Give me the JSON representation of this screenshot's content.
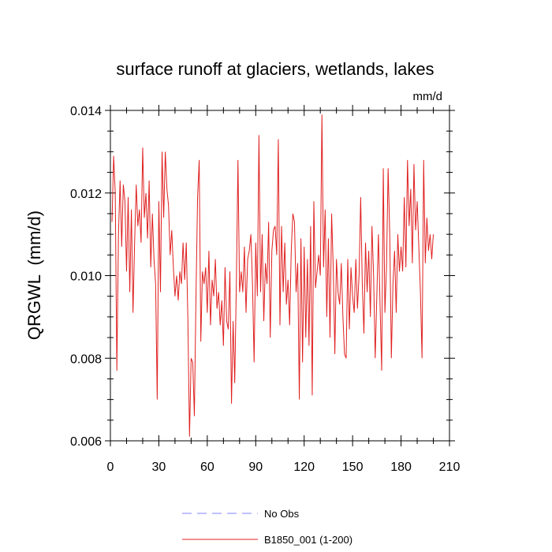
{
  "chart_data": {
    "type": "line",
    "title": "surface runoff at glaciers, wetlands, lakes",
    "units": "mm/d",
    "y_label": "QRGWL  (mm/d)",
    "xlim": [
      0,
      210
    ],
    "xticks": [
      0,
      30,
      60,
      90,
      120,
      150,
      180,
      210
    ],
    "ylim": [
      0.006,
      0.014
    ],
    "yticks": [
      0.006,
      0.008,
      {
        "value": 0.01,
        "label": "0.010"
      },
      0.012,
      0.014
    ],
    "x": [
      1,
      2,
      3,
      4,
      5,
      6,
      7,
      8,
      9,
      10,
      11,
      12,
      13,
      14,
      15,
      16,
      17,
      18,
      19,
      20,
      21,
      22,
      23,
      24,
      25,
      26,
      27,
      28,
      29,
      30,
      31,
      32,
      33,
      34,
      35,
      36,
      37,
      38,
      39,
      40,
      41,
      42,
      43,
      44,
      45,
      46,
      47,
      48,
      49,
      50,
      51,
      52,
      53,
      54,
      55,
      56,
      57,
      58,
      59,
      60,
      61,
      62,
      63,
      64,
      65,
      66,
      67,
      68,
      69,
      70,
      71,
      72,
      73,
      74,
      75,
      76,
      77,
      78,
      79,
      80,
      81,
      82,
      83,
      84,
      85,
      86,
      87,
      88,
      89,
      90,
      91,
      92,
      93,
      94,
      95,
      96,
      97,
      98,
      99,
      100,
      101,
      102,
      103,
      104,
      105,
      106,
      107,
      108,
      109,
      110,
      111,
      112,
      113,
      114,
      115,
      116,
      117,
      118,
      119,
      120,
      121,
      122,
      123,
      124,
      125,
      126,
      127,
      128,
      129,
      130,
      131,
      132,
      133,
      134,
      135,
      136,
      137,
      138,
      139,
      140,
      141,
      142,
      143,
      144,
      145,
      146,
      147,
      148,
      149,
      150,
      151,
      152,
      153,
      154,
      155,
      156,
      157,
      158,
      159,
      160,
      161,
      162,
      163,
      164,
      165,
      166,
      167,
      168,
      169,
      170,
      171,
      172,
      173,
      174,
      175,
      176,
      177,
      178,
      179,
      180,
      181,
      182,
      183,
      184,
      185,
      186,
      187,
      188,
      189,
      190,
      191,
      192,
      193,
      194,
      195,
      196,
      197,
      198,
      199,
      200
    ],
    "series": [
      {
        "name": "No Obs",
        "color": "#8080ff",
        "line_style": "dashed"
      },
      {
        "name": "B1850_001 (1-200)",
        "color": "#e02020",
        "line_style": "solid",
        "values": [
          0.0113,
          0.0129,
          0.012,
          0.0077,
          0.011,
          0.0123,
          0.0107,
          0.0122,
          0.0118,
          0.0101,
          0.0119,
          0.0096,
          0.0116,
          0.0091,
          0.0108,
          0.0122,
          0.0112,
          0.0116,
          0.0108,
          0.0131,
          0.0114,
          0.012,
          0.0109,
          0.0123,
          0.0102,
          0.0115,
          0.0104,
          0.0098,
          0.007,
          0.0118,
          0.0096,
          0.013,
          0.0114,
          0.013,
          0.0121,
          0.0117,
          0.0105,
          0.0111,
          0.0102,
          0.0095,
          0.01,
          0.0094,
          0.0101,
          0.0098,
          0.0108,
          0.0099,
          0.0108,
          0.0089,
          0.0061,
          0.008,
          0.0079,
          0.0066,
          0.0095,
          0.0119,
          0.0128,
          0.0084,
          0.0101,
          0.0098,
          0.0102,
          0.0091,
          0.0106,
          0.0088,
          0.0099,
          0.0095,
          0.0104,
          0.0092,
          0.0096,
          0.0088,
          0.0094,
          0.0083,
          0.0102,
          0.0089,
          0.0087,
          0.0101,
          0.0069,
          0.0089,
          0.0074,
          0.0098,
          0.0128,
          0.0096,
          0.0101,
          0.0096,
          0.0107,
          0.0091,
          0.0104,
          0.0106,
          0.011,
          0.0098,
          0.0079,
          0.0108,
          0.0095,
          0.0134,
          0.0096,
          0.011,
          0.0089,
          0.0103,
          0.0098,
          0.0113,
          0.0085,
          0.0106,
          0.0111,
          0.0112,
          0.0105,
          0.0133,
          0.0088,
          0.0112,
          0.0096,
          0.0108,
          0.0093,
          0.0099,
          0.0088,
          0.0106,
          0.0115,
          0.0113,
          0.0096,
          0.0103,
          0.007,
          0.0109,
          0.0079,
          0.0107,
          0.0085,
          0.0104,
          0.0083,
          0.0112,
          0.0071,
          0.0118,
          0.0097,
          0.0101,
          0.0105,
          0.01,
          0.0139,
          0.0102,
          0.0116,
          0.009,
          0.0109,
          0.0085,
          0.0115,
          0.0102,
          0.0081,
          0.0104,
          0.0096,
          0.0093,
          0.0103,
          0.009,
          0.0081,
          0.008,
          0.0104,
          0.0087,
          0.0102,
          0.0095,
          0.0091,
          0.0104,
          0.0092,
          0.01,
          0.0119,
          0.0098,
          0.0086,
          0.0108,
          0.0096,
          0.0106,
          0.009,
          0.0112,
          0.01,
          0.008,
          0.0095,
          0.011,
          0.0093,
          0.0077,
          0.0126,
          0.0091,
          0.0102,
          0.0126,
          0.011,
          0.008,
          0.0098,
          0.0106,
          0.0091,
          0.011,
          0.0101,
          0.0107,
          0.0101,
          0.0119,
          0.0102,
          0.0128,
          0.0112,
          0.0121,
          0.0103,
          0.0127,
          0.0111,
          0.0118,
          0.0107,
          0.0096,
          0.008,
          0.0128,
          0.0103,
          0.0114,
          0.0106,
          0.011,
          0.0104,
          0.011
        ]
      }
    ]
  }
}
